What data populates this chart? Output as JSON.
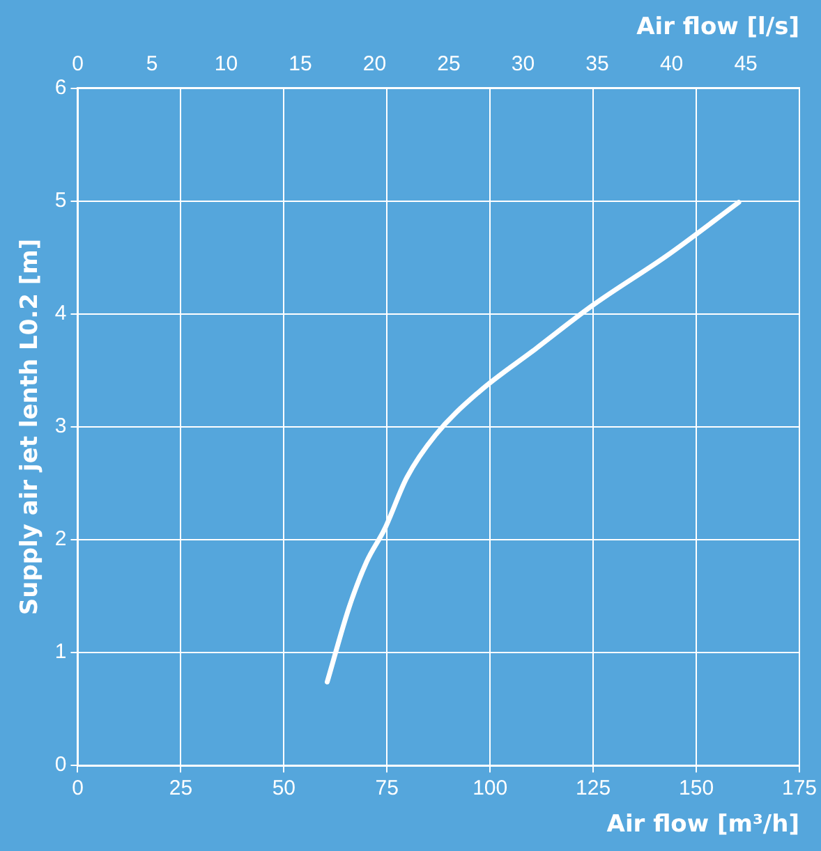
{
  "chart_data": {
    "type": "line",
    "xlabel": "Air flow [m³/h]",
    "x2label": "Air flow [l/s]",
    "ylabel": "Supply air jet lenth L0.2 [m]",
    "xlim": [
      0,
      175
    ],
    "xticks": [
      0,
      25,
      50,
      75,
      100,
      125,
      150,
      175
    ],
    "x2lim": [
      0,
      48.61
    ],
    "x2ticks": [
      0,
      5,
      10,
      15,
      20,
      25,
      30,
      35,
      40,
      45
    ],
    "ylim": [
      0,
      6
    ],
    "yticks": [
      0,
      1,
      2,
      3,
      4,
      5,
      6
    ],
    "grid": true,
    "legend": false,
    "marker": "none",
    "line_style": "solid",
    "series": [
      {
        "color": "#ffffff",
        "x": [
          60.5,
          65.8,
          70,
          74.5,
          79.8,
          86.8,
          97.3,
          111,
          125,
          143,
          160.3
        ],
        "values": [
          0.74,
          1.4,
          1.8,
          2.1,
          2.55,
          2.93,
          3.31,
          3.69,
          4.08,
          4.52,
          4.99
        ]
      }
    ]
  }
}
